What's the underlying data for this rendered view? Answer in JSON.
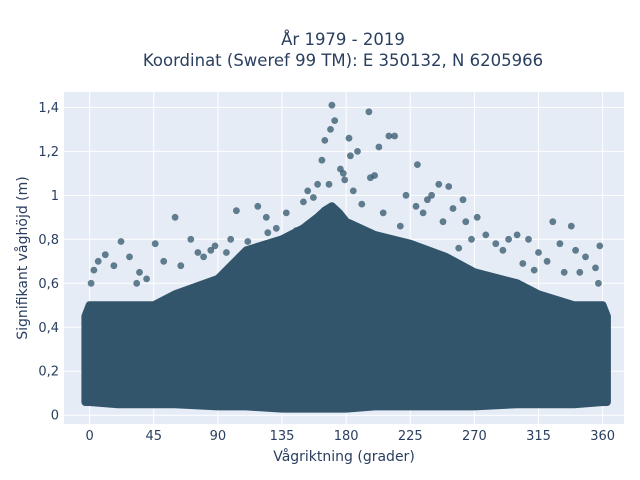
{
  "chart_data": {
    "type": "scatter",
    "title_line1": "År 1979 - 2019",
    "title_line2": "Koordinat (Sweref 99 TM): E 350132, N 6205966",
    "xlabel": "Vågriktning (grader)",
    "ylabel": "Signifikant våghöjd (m)",
    "xlim": [
      -18,
      375
    ],
    "ylim": [
      -0.04,
      1.47
    ],
    "xticks": [
      0,
      45,
      90,
      135,
      180,
      225,
      270,
      315,
      360
    ],
    "xtick_labels": [
      "0",
      "45",
      "90",
      "135",
      "180",
      "225",
      "270",
      "315",
      "360"
    ],
    "yticks": [
      0,
      0.2,
      0.4,
      0.6,
      0.8,
      1.0,
      1.2,
      1.4
    ],
    "ytick_labels": [
      "0",
      "0,2",
      "0,4",
      "0,6",
      "0,8",
      "1",
      "1,2",
      "1,4"
    ],
    "grid": true,
    "marker_color": "#32556b",
    "plot_background": "#e5ecf6",
    "envelope": {
      "x": [
        -3,
        0,
        20,
        45,
        60,
        90,
        110,
        135,
        150,
        160,
        165,
        170,
        175,
        180,
        200,
        225,
        250,
        270,
        300,
        315,
        340,
        360,
        363
      ],
      "y_low": [
        0.06,
        0.06,
        0.05,
        0.05,
        0.05,
        0.04,
        0.04,
        0.03,
        0.03,
        0.03,
        0.03,
        0.03,
        0.03,
        0.03,
        0.04,
        0.04,
        0.04,
        0.04,
        0.05,
        0.05,
        0.05,
        0.06,
        0.06
      ],
      "y_high": [
        0.45,
        0.5,
        0.5,
        0.5,
        0.55,
        0.62,
        0.75,
        0.8,
        0.85,
        0.9,
        0.93,
        0.95,
        0.92,
        0.88,
        0.82,
        0.78,
        0.72,
        0.65,
        0.6,
        0.55,
        0.5,
        0.5,
        0.45
      ]
    },
    "points": [
      [
        170,
        1.41
      ],
      [
        196,
        1.38
      ],
      [
        169,
        1.3
      ],
      [
        172,
        1.34
      ],
      [
        165,
        1.25
      ],
      [
        182,
        1.26
      ],
      [
        210,
        1.27
      ],
      [
        214,
        1.27
      ],
      [
        203,
        1.22
      ],
      [
        188,
        1.2
      ],
      [
        183,
        1.18
      ],
      [
        176,
        1.12
      ],
      [
        163,
        1.16
      ],
      [
        178,
        1.1
      ],
      [
        200,
        1.09
      ],
      [
        230,
        1.14
      ],
      [
        197,
        1.08
      ],
      [
        168,
        1.05
      ],
      [
        185,
        1.02
      ],
      [
        222,
        1.0
      ],
      [
        245,
        1.05
      ],
      [
        252,
        1.04
      ],
      [
        240,
        1.0
      ],
      [
        237,
        0.98
      ],
      [
        262,
        0.98
      ],
      [
        229,
        0.95
      ],
      [
        255,
        0.94
      ],
      [
        272,
        0.9
      ],
      [
        264,
        0.88
      ],
      [
        60,
        0.9
      ],
      [
        103,
        0.93
      ],
      [
        124,
        0.9
      ],
      [
        118,
        0.95
      ],
      [
        138,
        0.92
      ],
      [
        150,
        0.97
      ],
      [
        157,
        0.99
      ],
      [
        300,
        0.82
      ],
      [
        308,
        0.8
      ],
      [
        325,
        0.88
      ],
      [
        338,
        0.86
      ],
      [
        294,
        0.8
      ],
      [
        285,
        0.78
      ],
      [
        278,
        0.82
      ],
      [
        22,
        0.79
      ],
      [
        46,
        0.78
      ],
      [
        71,
        0.8
      ],
      [
        80,
        0.72
      ],
      [
        96,
        0.74
      ],
      [
        11,
        0.73
      ],
      [
        6,
        0.7
      ],
      [
        3,
        0.66
      ],
      [
        28,
        0.72
      ],
      [
        35,
        0.65
      ],
      [
        52,
        0.7
      ],
      [
        64,
        0.68
      ],
      [
        88,
        0.77
      ],
      [
        111,
        0.79
      ],
      [
        131,
        0.85
      ],
      [
        145,
        0.84
      ],
      [
        348,
        0.72
      ],
      [
        355,
        0.67
      ],
      [
        358,
        0.77
      ],
      [
        341,
        0.75
      ],
      [
        330,
        0.78
      ],
      [
        321,
        0.7
      ],
      [
        315,
        0.74
      ],
      [
        304,
        0.69
      ],
      [
        290,
        0.75
      ],
      [
        268,
        0.8
      ],
      [
        259,
        0.76
      ],
      [
        248,
        0.88
      ],
      [
        234,
        0.92
      ],
      [
        218,
        0.86
      ],
      [
        206,
        0.92
      ],
      [
        191,
        0.96
      ],
      [
        179,
        1.07
      ],
      [
        160,
        1.05
      ],
      [
        153,
        1.02
      ],
      [
        125,
        0.83
      ],
      [
        99,
        0.8
      ],
      [
        85,
        0.75
      ],
      [
        76,
        0.74
      ],
      [
        40,
        0.62
      ],
      [
        17,
        0.68
      ],
      [
        33,
        0.6
      ],
      [
        1,
        0.6
      ],
      [
        357,
        0.6
      ],
      [
        344,
        0.65
      ],
      [
        333,
        0.65
      ],
      [
        312,
        0.66
      ]
    ]
  }
}
